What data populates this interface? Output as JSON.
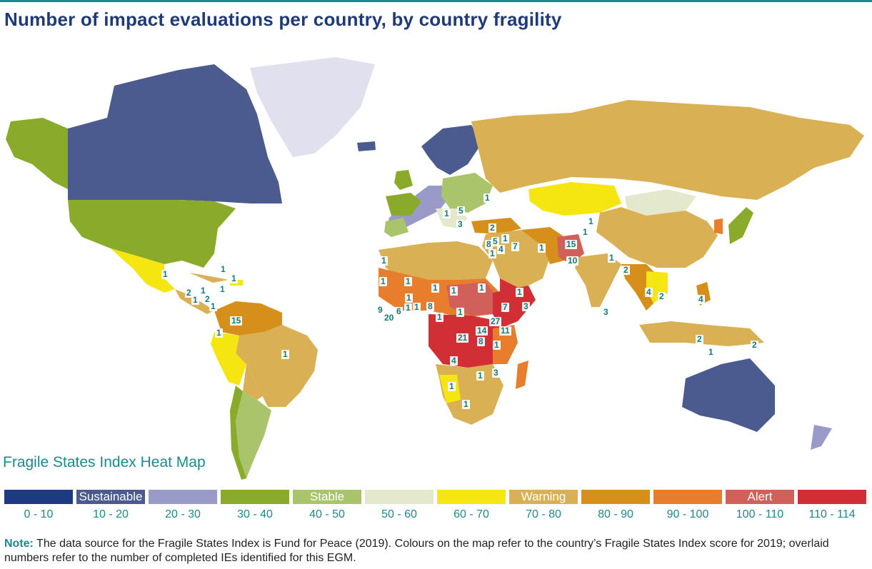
{
  "title": "Number of impact evaluations per country, by country fragility",
  "map_label": "Fragile States Index Heat Map",
  "legend": [
    {
      "range": "0 - 10",
      "label": "",
      "color": "#1e3a82"
    },
    {
      "range": "10 - 20",
      "label": "Sustainable",
      "color": "#4b5a8f"
    },
    {
      "range": "20 - 30",
      "label": "",
      "color": "#9a9ac8"
    },
    {
      "range": "30 - 40",
      "label": "",
      "color": "#8aab2a"
    },
    {
      "range": "40 - 50",
      "label": "Stable",
      "color": "#a9c46a"
    },
    {
      "range": "50 - 60",
      "label": "",
      "color": "#e4e8cc"
    },
    {
      "range": "60 - 70",
      "label": "",
      "color": "#f5e611"
    },
    {
      "range": "70 - 80",
      "label": "Warning",
      "color": "#d9b053"
    },
    {
      "range": "80 - 90",
      "label": "",
      "color": "#d68f1b"
    },
    {
      "range": "90 - 100",
      "label": "",
      "color": "#e87d2c"
    },
    {
      "range": "100 - 110",
      "label": "Alert",
      "color": "#d1605a"
    },
    {
      "range": "110 - 114",
      "label": "",
      "color": "#d12e35"
    }
  ],
  "note": {
    "label": "Note:",
    "text": " The data source for the Fragile States Index is Fund for Peace (2019). Colours on the map refer to the country’s Fragile States Index score for 2019; overlaid numbers refer to the number of completed IEs identified for this EGM."
  },
  "ie_counts": [
    {
      "name": "mexico",
      "value": "1"
    },
    {
      "name": "guatemala",
      "value": "2"
    },
    {
      "name": "honduras",
      "value": "1"
    },
    {
      "name": "el-salvador",
      "value": "1"
    },
    {
      "name": "nicaragua",
      "value": "2"
    },
    {
      "name": "costa-rica",
      "value": "1"
    },
    {
      "name": "panama",
      "value": "1"
    },
    {
      "name": "haiti",
      "value": "1"
    },
    {
      "name": "dominican-republic",
      "value": "1"
    },
    {
      "name": "colombia",
      "value": "15"
    },
    {
      "name": "ecuador",
      "value": "1"
    },
    {
      "name": "brazil",
      "value": "1"
    },
    {
      "name": "morocco",
      "value": "1"
    },
    {
      "name": "senegal",
      "value": "1"
    },
    {
      "name": "mali",
      "value": "1"
    },
    {
      "name": "burkina-faso",
      "value": "1"
    },
    {
      "name": "niger",
      "value": "1"
    },
    {
      "name": "nigeria",
      "value": "8"
    },
    {
      "name": "sierra-leone",
      "value": "9"
    },
    {
      "name": "liberia",
      "value": "20"
    },
    {
      "name": "cote-divoire",
      "value": "6"
    },
    {
      "name": "ghana",
      "value": "1"
    },
    {
      "name": "togo",
      "value": "1"
    },
    {
      "name": "cameroon",
      "value": "1"
    },
    {
      "name": "chad",
      "value": "1"
    },
    {
      "name": "sudan",
      "value": "1"
    },
    {
      "name": "car",
      "value": "1"
    },
    {
      "name": "south-sudan",
      "value": "27"
    },
    {
      "name": "ethiopia",
      "value": "7"
    },
    {
      "name": "somalia",
      "value": "3"
    },
    {
      "name": "djibouti",
      "value": "1"
    },
    {
      "name": "drc",
      "value": "21"
    },
    {
      "name": "uganda",
      "value": "14"
    },
    {
      "name": "kenya",
      "value": "11"
    },
    {
      "name": "burundi",
      "value": "8"
    },
    {
      "name": "tanzania",
      "value": "1"
    },
    {
      "name": "angola",
      "value": "4"
    },
    {
      "name": "malawi",
      "value": "1"
    },
    {
      "name": "mozambique",
      "value": "3"
    },
    {
      "name": "namibia",
      "value": "1"
    },
    {
      "name": "south-africa",
      "value": "1"
    },
    {
      "name": "ukraine",
      "value": "1"
    },
    {
      "name": "bosnia",
      "value": "1"
    },
    {
      "name": "serbia",
      "value": "5"
    },
    {
      "name": "kosovo",
      "value": "3"
    },
    {
      "name": "turkey",
      "value": "2"
    },
    {
      "name": "lebanon",
      "value": "8"
    },
    {
      "name": "syria",
      "value": "5"
    },
    {
      "name": "iraq",
      "value": "1"
    },
    {
      "name": "israel",
      "value": "1"
    },
    {
      "name": "palestine",
      "value": "4"
    },
    {
      "name": "jordan",
      "value": "7"
    },
    {
      "name": "iran",
      "value": "1"
    },
    {
      "name": "tajikistan",
      "value": "1"
    },
    {
      "name": "afghanistan",
      "value": "15"
    },
    {
      "name": "pakistan",
      "value": "10"
    },
    {
      "name": "kyrgyzstan",
      "value": "1"
    },
    {
      "name": "nepal",
      "value": "1"
    },
    {
      "name": "myanmar",
      "value": "2"
    },
    {
      "name": "sri-lanka",
      "value": "3"
    },
    {
      "name": "thailand",
      "value": "4"
    },
    {
      "name": "cambodia",
      "value": "2"
    },
    {
      "name": "philippines",
      "value": "4"
    },
    {
      "name": "indonesia",
      "value": "2"
    },
    {
      "name": "timor-leste",
      "value": "1"
    },
    {
      "name": "papua-new-guinea",
      "value": "2"
    }
  ]
}
